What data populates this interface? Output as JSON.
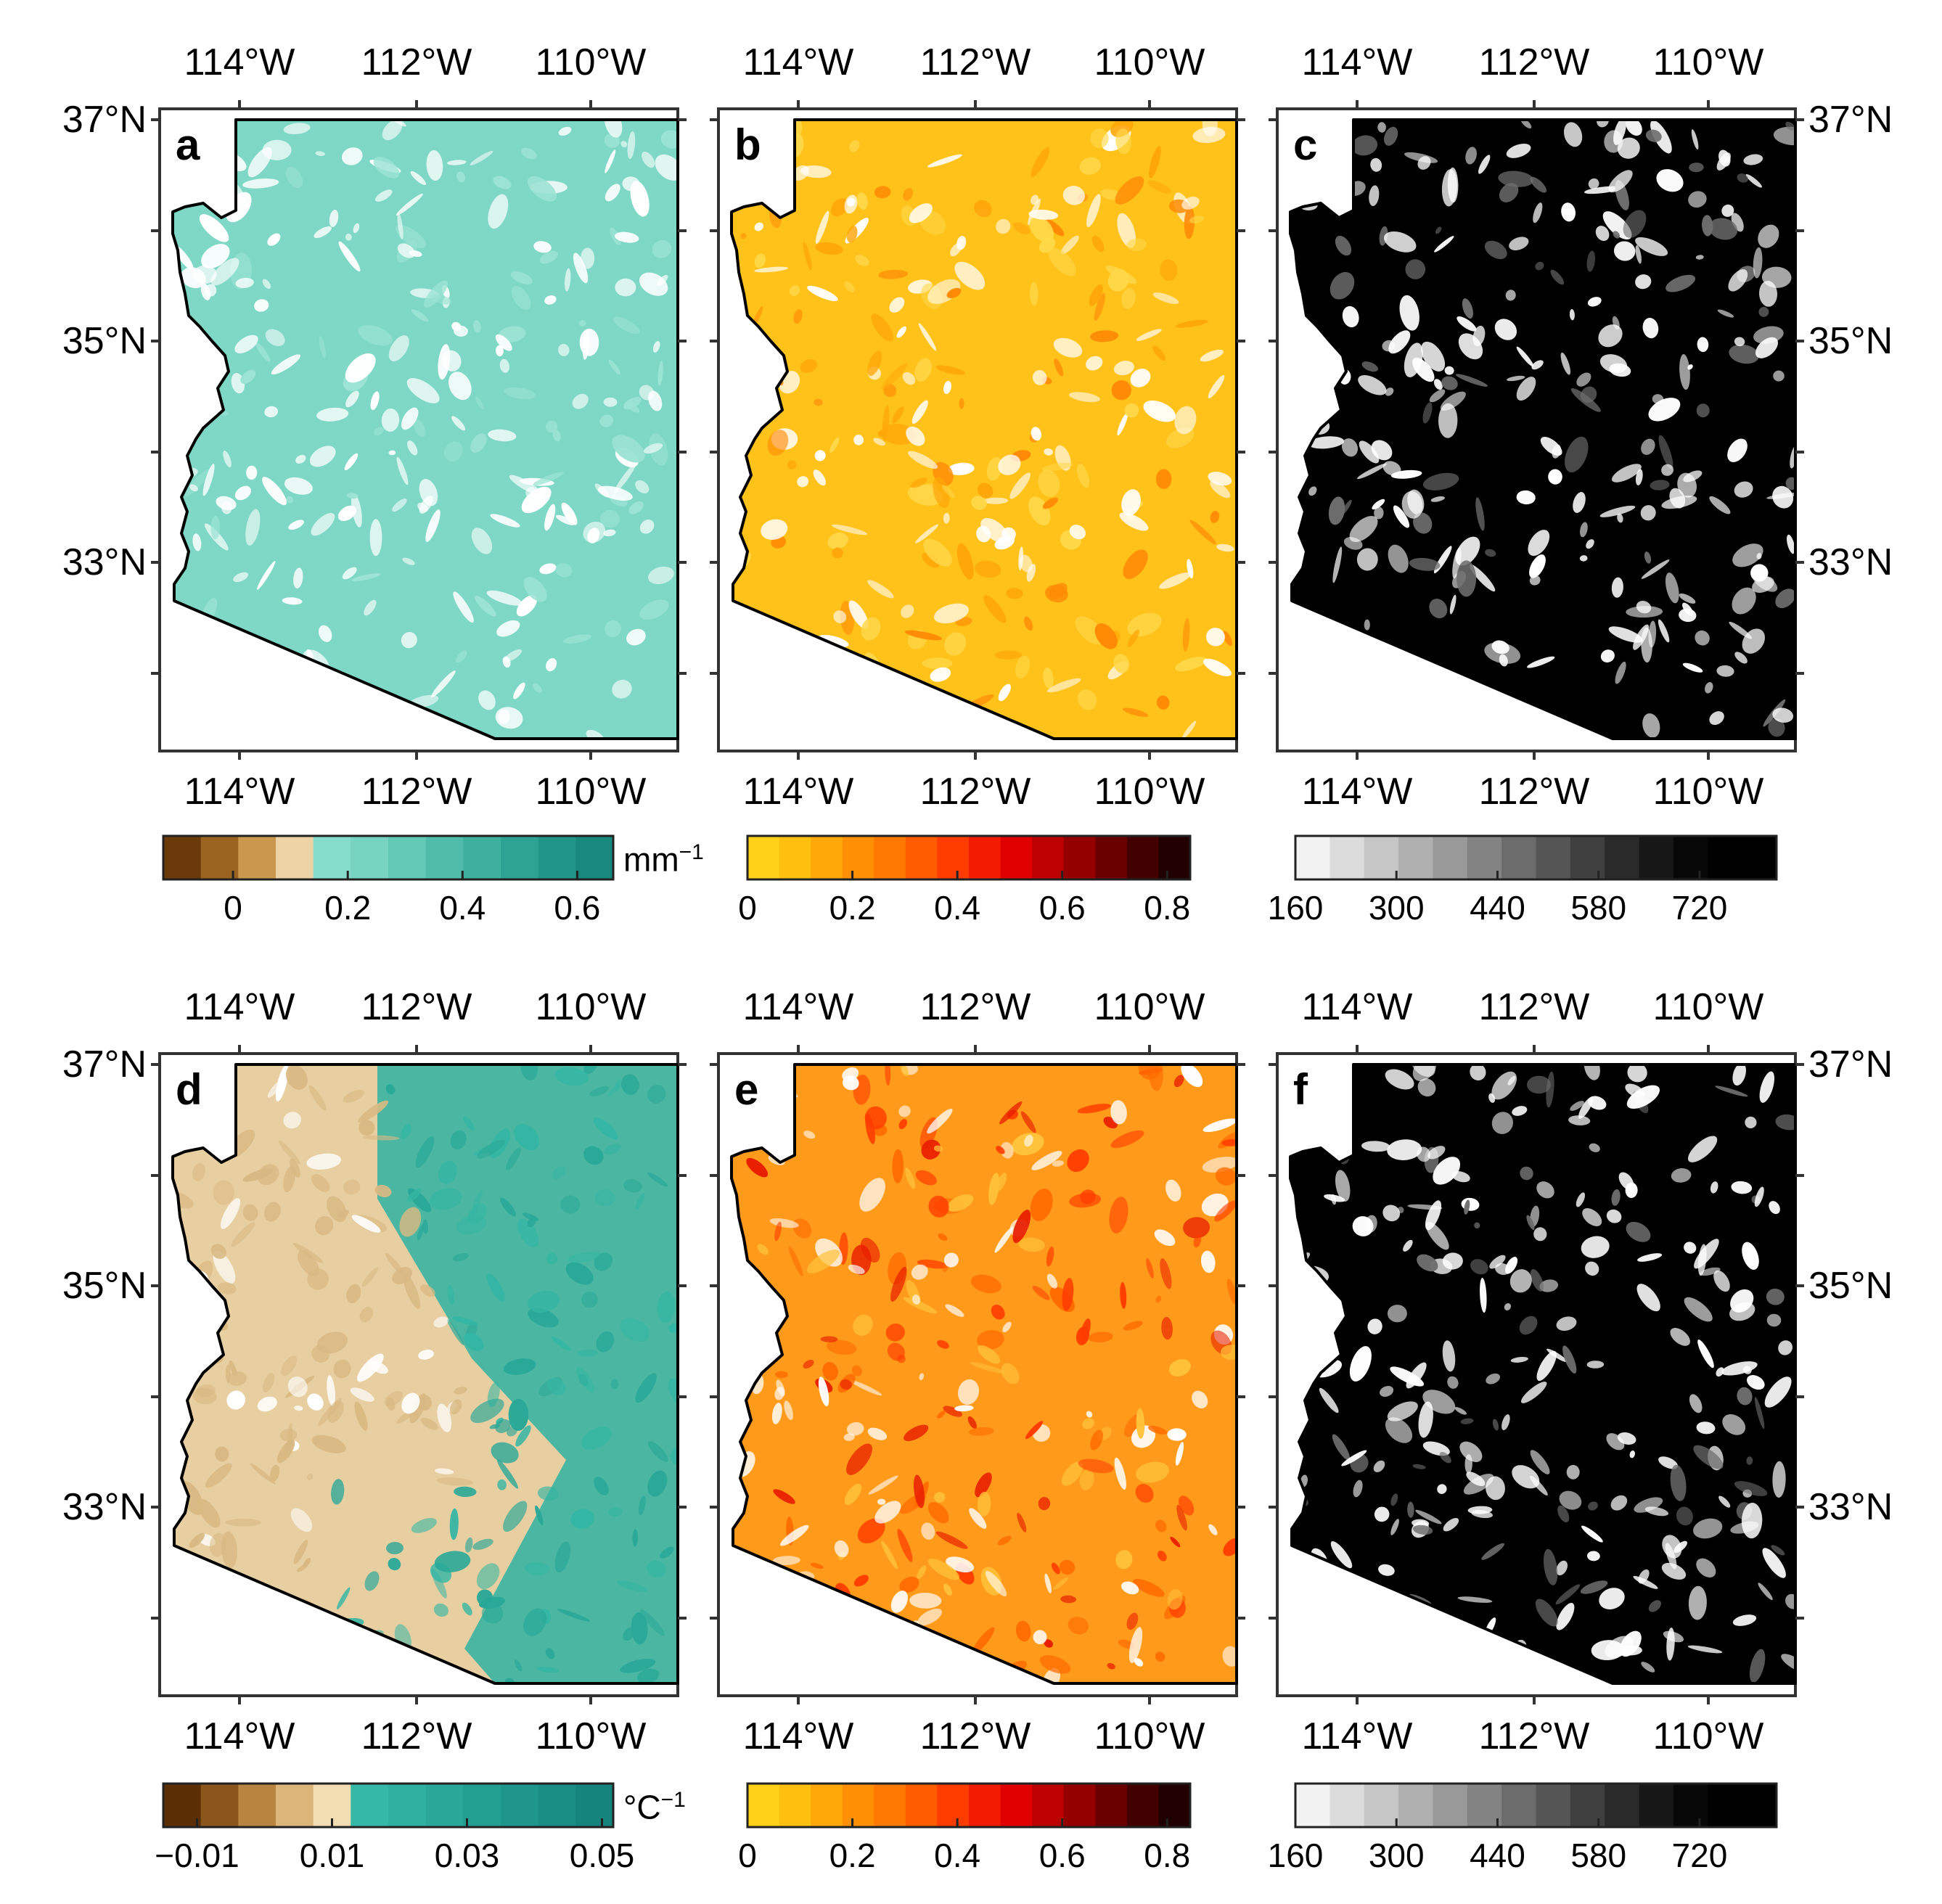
{
  "figure": {
    "panels": [
      {
        "letter": "a",
        "scheme": "teal",
        "shade": "#7fd8c6",
        "top_lon_labels": [
          "114°W",
          "112°W",
          "110°W"
        ],
        "bottom_lon_labels": [
          "114°W",
          "112°W",
          "110°W"
        ],
        "left_lat_labels": [
          "37°N",
          "35°N",
          "33°N"
        ],
        "right_lat_labels": []
      },
      {
        "letter": "b",
        "scheme": "yellow-red",
        "shade": "#ffc21a",
        "top_lon_labels": [
          "114°W",
          "112°W",
          "110°W"
        ],
        "bottom_lon_labels": [
          "114°W",
          "112°W",
          "110°W"
        ],
        "left_lat_labels": [],
        "right_lat_labels": []
      },
      {
        "letter": "c",
        "scheme": "gray",
        "shade": "#000000",
        "top_lon_labels": [
          "114°W",
          "112°W",
          "110°W"
        ],
        "bottom_lon_labels": [
          "114°W",
          "112°W",
          "110°W"
        ],
        "left_lat_labels": [],
        "right_lat_labels": [
          "37°N",
          "35°N",
          "33°N"
        ]
      },
      {
        "letter": "d",
        "scheme": "brown-teal",
        "shade": "#e8cfa2",
        "top_lon_labels": [
          "114°W",
          "112°W",
          "110°W"
        ],
        "bottom_lon_labels": [
          "114°W",
          "112°W",
          "110°W"
        ],
        "left_lat_labels": [
          "37°N",
          "35°N",
          "33°N"
        ],
        "right_lat_labels": []
      },
      {
        "letter": "e",
        "scheme": "yellow-red",
        "shade": "#ff9a1a",
        "top_lon_labels": [
          "114°W",
          "112°W",
          "110°W"
        ],
        "bottom_lon_labels": [
          "114°W",
          "112°W",
          "110°W"
        ],
        "left_lat_labels": [],
        "right_lat_labels": []
      },
      {
        "letter": "f",
        "scheme": "gray",
        "shade": "#000000",
        "top_lon_labels": [
          "114°W",
          "112°W",
          "110°W"
        ],
        "bottom_lon_labels": [
          "114°W",
          "112°W",
          "110°W"
        ],
        "left_lat_labels": [],
        "right_lat_labels": [
          "37°N",
          "35°N",
          "33°N"
        ]
      }
    ],
    "colorbars": [
      {
        "id": "a",
        "ticks": [
          "0",
          "0.2",
          "0.4",
          "0.6"
        ],
        "unit": "mm",
        "unit_sup": "−1",
        "colors": [
          "#6b3a0a",
          "#9a6420",
          "#c9974e",
          "#ecd3a5",
          "#86dccb",
          "#76d4c1",
          "#62c9b5",
          "#4fbdaa",
          "#3db09e",
          "#2ea393",
          "#219688",
          "#17897d"
        ]
      },
      {
        "id": "b",
        "ticks": [
          "0",
          "0.2",
          "0.4",
          "0.6",
          "0.8"
        ],
        "unit": "",
        "unit_sup": "",
        "colors": [
          "#ffd21a",
          "#ffbf0f",
          "#ffa80a",
          "#ff9005",
          "#ff7800",
          "#ff5c00",
          "#ff3c00",
          "#f21d00",
          "#e00000",
          "#bd0000",
          "#940000",
          "#6b0000",
          "#430000",
          "#200000"
        ]
      },
      {
        "id": "c",
        "ticks": [
          "160",
          "300",
          "440",
          "580",
          "720"
        ],
        "unit": "",
        "unit_sup": "",
        "colors": [
          "#f2f2f2",
          "#dcdcdc",
          "#c6c6c6",
          "#b0b0b0",
          "#999999",
          "#838383",
          "#6c6c6c",
          "#555555",
          "#3f3f3f",
          "#2a2a2a",
          "#171717",
          "#080808",
          "#000000",
          "#000000"
        ]
      },
      {
        "id": "d",
        "ticks": [
          "−0.01",
          "0.01",
          "0.03",
          "0.05"
        ],
        "unit": "°C",
        "unit_sup": "−1",
        "colors": [
          "#5c2e05",
          "#8a561b",
          "#b88540",
          "#dcb57a",
          "#f2ddb3",
          "#35b8a6",
          "#2fb0a0",
          "#29a799",
          "#239f92",
          "#1e968b",
          "#198d84",
          "#14847d"
        ]
      },
      {
        "id": "e",
        "ticks": [
          "0",
          "0.2",
          "0.4",
          "0.6",
          "0.8"
        ],
        "unit": "",
        "unit_sup": "",
        "colors": [
          "#ffd21a",
          "#ffbf0f",
          "#ffa80a",
          "#ff9005",
          "#ff7800",
          "#ff5c00",
          "#ff3c00",
          "#f21d00",
          "#e00000",
          "#bd0000",
          "#940000",
          "#6b0000",
          "#430000",
          "#200000"
        ]
      },
      {
        "id": "f",
        "ticks": [
          "160",
          "300",
          "440",
          "580",
          "720"
        ],
        "unit": "",
        "unit_sup": "",
        "colors": [
          "#f2f2f2",
          "#dcdcdc",
          "#c6c6c6",
          "#b0b0b0",
          "#999999",
          "#838383",
          "#6c6c6c",
          "#555555",
          "#3f3f3f",
          "#2a2a2a",
          "#171717",
          "#080808",
          "#000000",
          "#000000"
        ]
      }
    ]
  }
}
